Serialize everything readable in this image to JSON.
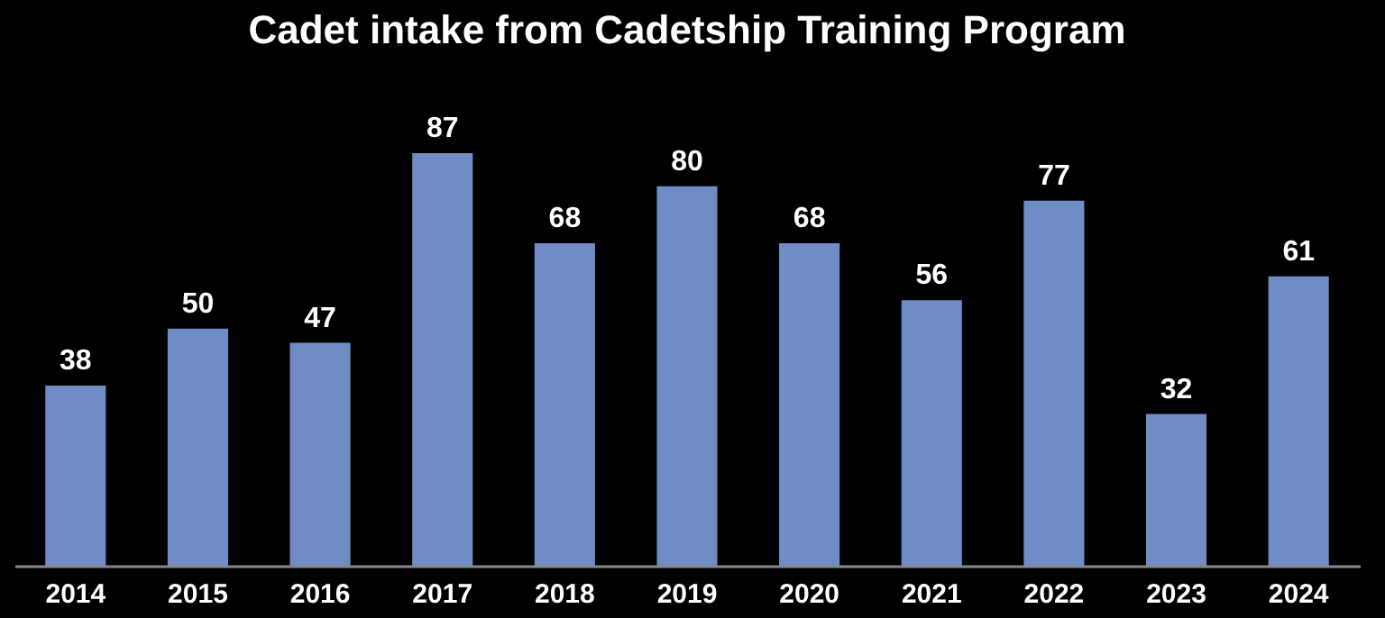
{
  "chart_data": {
    "type": "bar",
    "title": "Cadet intake from Cadetship Training Program",
    "categories": [
      "2014",
      "2015",
      "2016",
      "2017",
      "2018",
      "2019",
      "2020",
      "2021",
      "2022",
      "2023",
      "2024"
    ],
    "values": [
      38,
      50,
      47,
      87,
      68,
      80,
      68,
      56,
      77,
      32,
      61
    ],
    "color": "#6f8cc4",
    "data_labels": true
  }
}
